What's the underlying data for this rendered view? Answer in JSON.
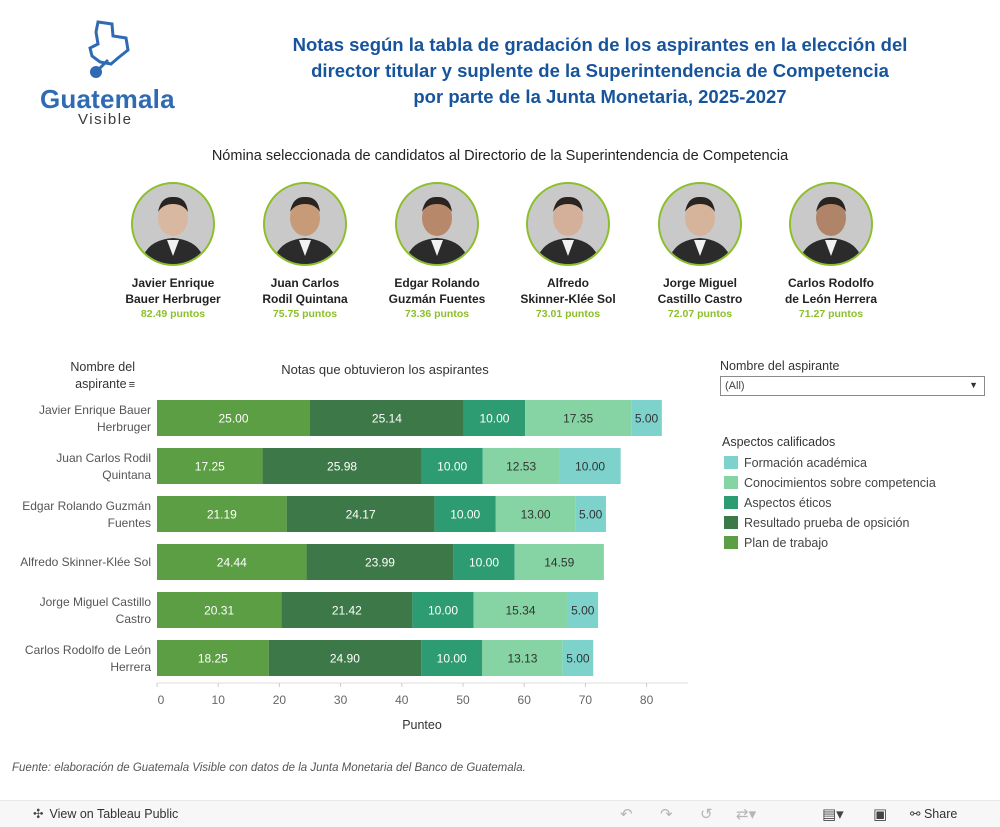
{
  "logo": {
    "word": "Guatemala",
    "sub": "Visible"
  },
  "title_lines": [
    "Notas según la tabla de gradación de los aspirantes en la elección del",
    "director titular y suplente de la Superintendencia de Competencia",
    "por parte de la Junta Monetaria, 2025-2027"
  ],
  "subtitle": "Nómina seleccionada de candidatos al Directorio de la Superintendencia de Competencia",
  "candidates": [
    {
      "line1": "Javier Enrique",
      "line2": "Bauer Herbruger",
      "points": "82.49 puntos"
    },
    {
      "line1": "Juan Carlos",
      "line2": "Rodil Quintana",
      "points": "75.75 puntos"
    },
    {
      "line1": "Edgar Rolando",
      "line2": "Guzmán Fuentes",
      "points": "73.36 puntos"
    },
    {
      "line1": "Alfredo",
      "line2": "Skinner-Klée Sol",
      "points": "73.01 puntos"
    },
    {
      "line1": "Jorge Miguel",
      "line2": "Castillo Castro",
      "points": "72.07 puntos"
    },
    {
      "line1": "Carlos Rodolfo",
      "line2": "de León Herrera",
      "points": "71.27 puntos"
    }
  ],
  "rows_header": {
    "line1": "Nombre del",
    "line2": "aspirante"
  },
  "chart_title": "Notas que obtuvieron los aspirantes",
  "filter": {
    "label": "Nombre del aspirante",
    "value": "(All)"
  },
  "legend_title": "Aspectos calificados",
  "source": "Fuente: elaboración de Guatemala Visible con datos de la Junta Monetaria del Banco de Guatemala.",
  "toolbar": {
    "view_label": "View on Tableau Public",
    "share_label": "Share"
  },
  "chart_data": {
    "type": "bar",
    "orientation": "horizontal",
    "stacked": true,
    "title": "Notas que obtuvieron los aspirantes",
    "xlabel": "Punteo",
    "ylabel": "Nombre del aspirante",
    "xlim": [
      0,
      87
    ],
    "xticks": [
      0,
      10,
      20,
      30,
      40,
      50,
      60,
      70,
      80
    ],
    "categories": [
      [
        "Javier Enrique Bauer",
        "Herbruger"
      ],
      [
        "Juan Carlos Rodil",
        "Quintana"
      ],
      [
        "Edgar Rolando Guzmán",
        "Fuentes"
      ],
      [
        "Alfredo Skinner-Klée Sol"
      ],
      [
        "Jorge Miguel Castillo",
        "Castro"
      ],
      [
        "Carlos Rodolfo de León",
        "Herrera"
      ]
    ],
    "series": [
      {
        "name": "Plan de trabajo",
        "color": "#5c9e44",
        "label_color": "#ffffff",
        "values": [
          25.0,
          17.25,
          21.19,
          24.44,
          20.31,
          18.25
        ]
      },
      {
        "name": "Resultado prueba de opsición",
        "color": "#3d7848",
        "label_color": "#ffffff",
        "values": [
          25.14,
          25.98,
          24.17,
          23.99,
          21.42,
          24.9
        ]
      },
      {
        "name": "Aspectos éticos",
        "color": "#2e9c73",
        "label_color": "#ffffff",
        "values": [
          10.0,
          10.0,
          10.0,
          10.0,
          10.0,
          10.0
        ]
      },
      {
        "name": "Conocimientos sobre competencia",
        "color": "#86d4a3",
        "label_color": "#333333",
        "values": [
          17.35,
          12.53,
          13.0,
          14.59,
          15.34,
          13.13
        ]
      },
      {
        "name": "Formación académica",
        "color": "#7dd3cc",
        "label_color": "#333333",
        "values": [
          5.0,
          10.0,
          5.0,
          0,
          5.0,
          5.0
        ]
      }
    ],
    "legend_order": [
      "Formación académica",
      "Conocimientos sobre competencia",
      "Aspectos éticos",
      "Resultado prueba de opsición",
      "Plan de trabajo"
    ]
  }
}
